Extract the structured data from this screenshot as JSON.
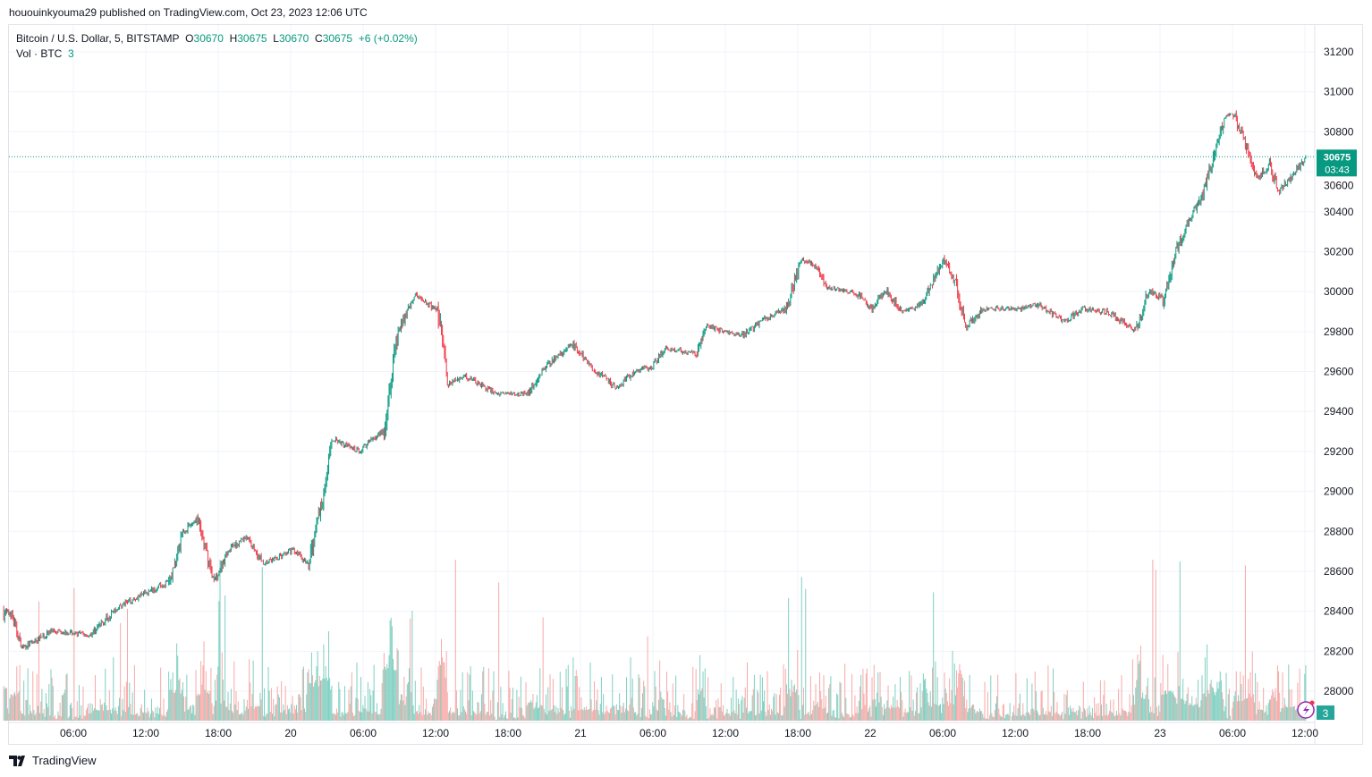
{
  "publisher_line": "hououinkyouma29 published on TradingView.com, Oct 23, 2023 12:06 UTC",
  "legend": {
    "symbol": "Bitcoin / U.S. Dollar, 5, BITSTAMP",
    "o_label": "O",
    "o": "30670",
    "h_label": "H",
    "h": "30675",
    "l_label": "L",
    "l": "30670",
    "c_label": "C",
    "c": "30675",
    "change": "+6 (+0.02%)",
    "vol_label": "Vol · BTC",
    "vol": "3"
  },
  "price_label": {
    "price": "30675",
    "countdown": "03:43"
  },
  "volume_label": "3",
  "footer": {
    "brand": "TradingView"
  },
  "colors": {
    "up": "#089981",
    "down": "#f23645",
    "up_vol": "#7fcfc0",
    "down_vol": "#f7a9a7",
    "grid": "#f0f3fa",
    "badge": "#089981",
    "alert_icon": "#9c27b0"
  },
  "icons": {
    "alert": "lightning-bolt-icon",
    "logo": "tradingview-logo-icon"
  },
  "chart_data": {
    "type": "candlestick",
    "interval": "5 minutes",
    "ylim": [
      27900,
      31300
    ],
    "yticks": [
      28000,
      28200,
      28400,
      28600,
      28800,
      29000,
      29200,
      29400,
      29600,
      29800,
      30000,
      30200,
      30400,
      30600,
      30800,
      31000,
      31200
    ],
    "xticks": [
      {
        "t": "2023-10-19T06:00",
        "label": "06:00"
      },
      {
        "t": "2023-10-19T12:00",
        "label": "12:00"
      },
      {
        "t": "2023-10-19T18:00",
        "label": "18:00"
      },
      {
        "t": "2023-10-20T00:00",
        "label": "20"
      },
      {
        "t": "2023-10-20T06:00",
        "label": "06:00"
      },
      {
        "t": "2023-10-20T12:00",
        "label": "12:00"
      },
      {
        "t": "2023-10-20T18:00",
        "label": "18:00"
      },
      {
        "t": "2023-10-21T00:00",
        "label": "21"
      },
      {
        "t": "2023-10-21T06:00",
        "label": "06:00"
      },
      {
        "t": "2023-10-21T12:00",
        "label": "12:00"
      },
      {
        "t": "2023-10-21T18:00",
        "label": "18:00"
      },
      {
        "t": "2023-10-22T00:00",
        "label": "22"
      },
      {
        "t": "2023-10-22T06:00",
        "label": "06:00"
      },
      {
        "t": "2023-10-22T12:00",
        "label": "12:00"
      },
      {
        "t": "2023-10-22T18:00",
        "label": "18:00"
      },
      {
        "t": "2023-10-23T00:00",
        "label": "23"
      },
      {
        "t": "2023-10-23T06:00",
        "label": "06:00"
      },
      {
        "t": "2023-10-23T12:00",
        "label": "12:00"
      }
    ],
    "last_price": 30675,
    "approx_price_path": [
      [
        "2023-10-19T00:50",
        28395
      ],
      [
        "2023-10-19T01:45",
        28215
      ],
      [
        "2023-10-19T04:20",
        28305
      ],
      [
        "2023-10-19T07:20",
        28280
      ],
      [
        "2023-10-19T09:35",
        28415
      ],
      [
        "2023-10-19T11:45",
        28485
      ],
      [
        "2023-10-19T14:00",
        28550
      ],
      [
        "2023-10-19T15:05",
        28795
      ],
      [
        "2023-10-19T16:15",
        28865
      ],
      [
        "2023-10-19T17:40",
        28550
      ],
      [
        "2023-10-19T18:50",
        28705
      ],
      [
        "2023-10-19T20:20",
        28775
      ],
      [
        "2023-10-19T21:45",
        28640
      ],
      [
        "2023-10-20T00:20",
        28705
      ],
      [
        "2023-10-20T01:30",
        28640
      ],
      [
        "2023-10-20T02:35",
        28955
      ],
      [
        "2023-10-20T03:30",
        29265
      ],
      [
        "2023-10-20T05:35",
        29200
      ],
      [
        "2023-10-20T07:45",
        29310
      ],
      [
        "2023-10-20T08:55",
        29805
      ],
      [
        "2023-10-20T10:20",
        29985
      ],
      [
        "2023-10-20T12:15",
        29895
      ],
      [
        "2023-10-20T13:00",
        29535
      ],
      [
        "2023-10-20T14:25",
        29580
      ],
      [
        "2023-10-20T17:00",
        29490
      ],
      [
        "2023-10-20T19:40",
        29490
      ],
      [
        "2023-10-20T21:05",
        29625
      ],
      [
        "2023-10-20T23:20",
        29735
      ],
      [
        "2023-10-21T00:50",
        29625
      ],
      [
        "2023-10-21T03:00",
        29515
      ],
      [
        "2023-10-21T04:30",
        29600
      ],
      [
        "2023-10-21T06:00",
        29625
      ],
      [
        "2023-10-21T07:05",
        29715
      ],
      [
        "2023-10-21T09:40",
        29690
      ],
      [
        "2023-10-21T10:25",
        29825
      ],
      [
        "2023-10-21T13:25",
        29780
      ],
      [
        "2023-10-21T14:55",
        29850
      ],
      [
        "2023-10-21T17:05",
        29915
      ],
      [
        "2023-10-21T18:15",
        30160
      ],
      [
        "2023-10-21T19:20",
        30140
      ],
      [
        "2023-10-21T20:25",
        30025
      ],
      [
        "2023-10-21T23:00",
        29985
      ],
      [
        "2023-10-22T00:10",
        29915
      ],
      [
        "2023-10-22T01:15",
        30005
      ],
      [
        "2023-10-22T02:45",
        29895
      ],
      [
        "2023-10-22T04:15",
        29940
      ],
      [
        "2023-10-22T06:05",
        30160
      ],
      [
        "2023-10-22T07:10",
        30025
      ],
      [
        "2023-10-22T07:55",
        29825
      ],
      [
        "2023-10-22T09:25",
        29915
      ],
      [
        "2023-10-22T12:20",
        29915
      ],
      [
        "2023-10-22T13:50",
        29940
      ],
      [
        "2023-10-22T16:05",
        29850
      ],
      [
        "2023-10-22T17:35",
        29915
      ],
      [
        "2023-10-22T19:45",
        29895
      ],
      [
        "2023-10-22T22:00",
        29805
      ],
      [
        "2023-10-22T23:05",
        30005
      ],
      [
        "2023-10-23T00:15",
        29960
      ],
      [
        "2023-10-23T01:20",
        30205
      ],
      [
        "2023-10-23T02:25",
        30360
      ],
      [
        "2023-10-23T03:35",
        30495
      ],
      [
        "2023-10-23T04:20",
        30655
      ],
      [
        "2023-10-23T05:25",
        30880
      ],
      [
        "2023-10-23T06:10",
        30880
      ],
      [
        "2023-10-23T07:15",
        30700
      ],
      [
        "2023-10-23T08:00",
        30565
      ],
      [
        "2023-10-23T09:05",
        30630
      ],
      [
        "2023-10-23T09:50",
        30500
      ],
      [
        "2023-10-23T11:00",
        30585
      ],
      [
        "2023-10-23T12:05",
        30675
      ]
    ]
  }
}
